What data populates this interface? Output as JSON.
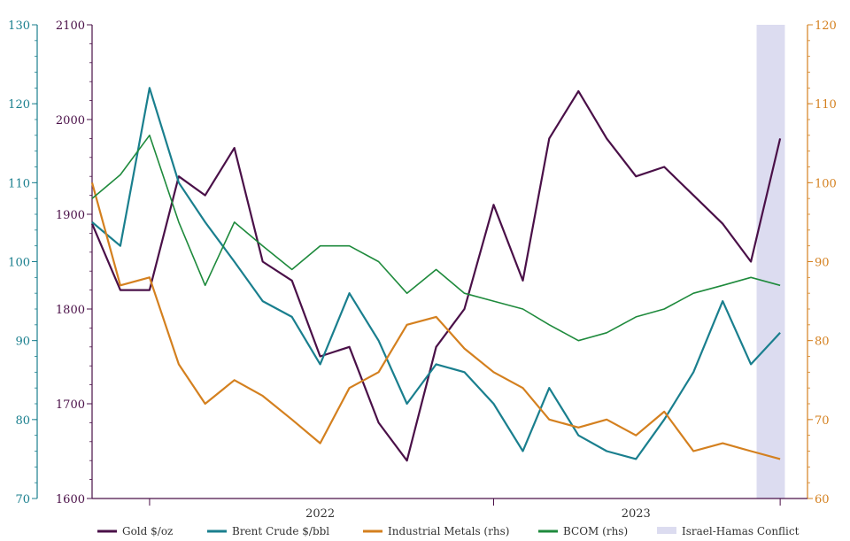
{
  "chart_data": {
    "type": "line",
    "title": "",
    "x_ticks": [
      "2022",
      "2023"
    ],
    "x_range": [
      "2021-11",
      "2023-11"
    ],
    "axes": {
      "left_outer": {
        "ticks": [
          "130",
          "120",
          "110",
          "100",
          "90",
          "80",
          "70"
        ],
        "range": [
          70,
          130
        ],
        "color": "#1a7f8e"
      },
      "left_inner": {
        "ticks": [
          "2100",
          "2000",
          "1900",
          "1800",
          "1700",
          "1600"
        ],
        "range": [
          1600,
          2100
        ],
        "color": "#4a1048"
      },
      "right": {
        "ticks": [
          "120",
          "110",
          "100",
          "90",
          "80",
          "70",
          "60"
        ],
        "range": [
          60,
          120
        ],
        "color": "#d4801f"
      }
    },
    "shaded_region": {
      "label": "Israel-Hamas Conflict",
      "x": [
        "2023-10-07",
        "2023-11-06"
      ],
      "color": "#dcdcf0"
    },
    "series": [
      {
        "name": "Gold $/oz",
        "axis": "left_inner",
        "color": "#4a1048",
        "x": [
          "2021-11",
          "2021-12",
          "2022-01",
          "2022-02",
          "2022-03",
          "2022-04",
          "2022-05",
          "2022-06",
          "2022-07",
          "2022-08",
          "2022-09",
          "2022-10",
          "2022-11",
          "2022-12",
          "2023-01",
          "2023-02",
          "2023-03",
          "2023-04",
          "2023-05",
          "2023-06",
          "2023-07",
          "2023-08",
          "2023-09",
          "2023-10",
          "2023-11"
        ],
        "values": [
          1890,
          1820,
          1820,
          1940,
          1920,
          1970,
          1850,
          1830,
          1750,
          1760,
          1680,
          1640,
          1760,
          1800,
          1910,
          1830,
          1980,
          2030,
          1980,
          1940,
          1950,
          1920,
          1890,
          1850,
          1980
        ]
      },
      {
        "name": "Brent Crude $/bbl",
        "axis": "left_outer",
        "color": "#1a7f8e",
        "x": [
          "2021-11",
          "2021-12",
          "2022-01",
          "2022-02",
          "2022-03",
          "2022-04",
          "2022-05",
          "2022-06",
          "2022-07",
          "2022-08",
          "2022-09",
          "2022-10",
          "2022-11",
          "2022-12",
          "2023-01",
          "2023-02",
          "2023-03",
          "2023-04",
          "2023-05",
          "2023-06",
          "2023-07",
          "2023-08",
          "2023-09",
          "2023-10",
          "2023-11"
        ],
        "values": [
          105,
          102,
          122,
          110,
          105,
          100,
          95,
          93,
          87,
          96,
          90,
          82,
          87,
          86,
          82,
          76,
          84,
          78,
          76,
          75,
          80,
          86,
          95,
          87,
          91
        ]
      },
      {
        "name": "Industrial Metals (rhs)",
        "axis": "right",
        "color": "#d4801f",
        "x": [
          "2021-11",
          "2021-12",
          "2022-01",
          "2022-02",
          "2022-03",
          "2022-04",
          "2022-05",
          "2022-06",
          "2022-07",
          "2022-08",
          "2022-09",
          "2022-10",
          "2022-11",
          "2022-12",
          "2023-01",
          "2023-02",
          "2023-03",
          "2023-04",
          "2023-05",
          "2023-06",
          "2023-07",
          "2023-08",
          "2023-09",
          "2023-10",
          "2023-11"
        ],
        "values": [
          100,
          87,
          88,
          77,
          72,
          75,
          73,
          70,
          67,
          74,
          76,
          82,
          83,
          79,
          76,
          74,
          70,
          69,
          70,
          68,
          71,
          66,
          67,
          66,
          65
        ]
      },
      {
        "name": "BCOM (rhs)",
        "axis": "right",
        "color": "#1e8a3c",
        "x": [
          "2021-11",
          "2021-12",
          "2022-01",
          "2022-02",
          "2022-03",
          "2022-04",
          "2022-05",
          "2022-06",
          "2022-07",
          "2022-08",
          "2022-09",
          "2022-10",
          "2022-11",
          "2022-12",
          "2023-01",
          "2023-02",
          "2023-03",
          "2023-04",
          "2023-05",
          "2023-06",
          "2023-07",
          "2023-08",
          "2023-09",
          "2023-10",
          "2023-11"
        ],
        "values": [
          98,
          101,
          106,
          95,
          87,
          95,
          92,
          89,
          92,
          92,
          90,
          86,
          89,
          86,
          85,
          84,
          82,
          80,
          81,
          83,
          84,
          86,
          87,
          88,
          87
        ]
      }
    ],
    "legend": {
      "position": "bottom",
      "items": [
        "Gold $/oz",
        "Brent Crude $/bbl",
        "Industrial Metals (rhs)",
        "BCOM (rhs)",
        "Israel-Hamas Conflict"
      ]
    }
  }
}
